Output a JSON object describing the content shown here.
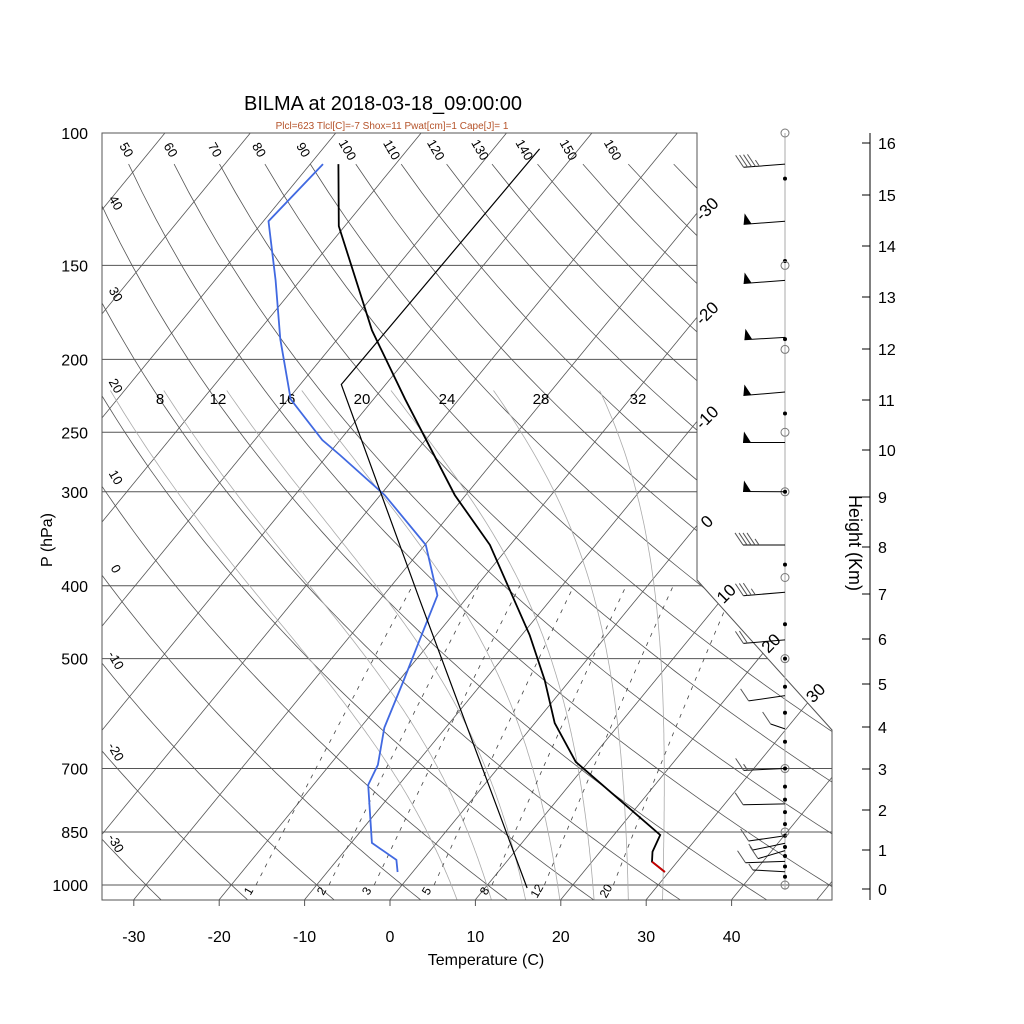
{
  "title": "BILMA at 2018-03-18_09:00:00",
  "subtitle": "Plcl=623 Tlcl[C]=-7 Shox=11 Pwat[cm]=1 Cape[J]= 1",
  "colors": {
    "temperature": "#000000",
    "dewpoint": "#4169e1",
    "surface_segment": "#cc0000",
    "subtitle": "#b5532a",
    "grid": "#555555",
    "moist_adiabat": "#aaaaaa"
  },
  "chart_data": {
    "type": "skew-t",
    "title": "BILMA at 2018-03-18_09:00:00",
    "xlabel": "Temperature (C)",
    "ylabel": "P (hPa)",
    "y2label": "Height (Km)",
    "x_ticks": [
      -30,
      -20,
      -10,
      0,
      10,
      20,
      30,
      40
    ],
    "pressure_ticks": [
      100,
      150,
      200,
      250,
      300,
      400,
      500,
      700,
      850,
      1000
    ],
    "height_ticks": [
      0,
      1,
      2,
      3,
      4,
      5,
      6,
      7,
      8,
      9,
      10,
      11,
      12,
      13,
      14,
      15,
      16
    ],
    "isotherm_labels": [
      -30,
      -20,
      -10,
      0,
      10,
      20,
      30
    ],
    "dry_adiabat_labels_top": [
      50,
      60,
      70,
      80,
      90,
      100,
      110,
      120,
      130,
      140,
      150,
      160
    ],
    "dry_adiabat_labels_left": [
      40,
      30,
      20,
      10,
      0,
      -10,
      -20,
      -30
    ],
    "moist_adiabat_labels": [
      8,
      12,
      16,
      20,
      24,
      28,
      32
    ],
    "mixing_ratio_labels": [
      1,
      2,
      3,
      5,
      8,
      12,
      20
    ],
    "series": [
      {
        "name": "temperature",
        "p": [
          961,
          931,
          903,
          858,
          686,
          609,
          534,
          465,
          353,
          303,
          226,
          183,
          133,
          110
        ],
        "t": [
          29.5,
          27.0,
          26.1,
          25.4,
          8.5,
          2.3,
          -3.0,
          -9.1,
          -22.4,
          -31.3,
          -46.3,
          -56.8,
          -70.7,
          -76.7
        ]
      },
      {
        "name": "dewpoint",
        "p": [
          961,
          926,
          879,
          795,
          736,
          692,
          618,
          534,
          472,
          412,
          353,
          303,
          268,
          256,
          226,
          188,
          157,
          131,
          110
        ],
        "t": [
          -1.8,
          -3.1,
          -7.6,
          -11.0,
          -13.6,
          -14.4,
          -17.2,
          -19.5,
          -21.5,
          -23.7,
          -29.9,
          -39.5,
          -48.6,
          -52.1,
          -59.7,
          -66.7,
          -72.9,
          -79.4,
          -78.5
        ]
      },
      {
        "name": "parcel",
        "p": [
          1009,
          418,
          216,
          105
        ],
        "t": [
          14.9,
          -25.3,
          -55.2,
          -54.6
        ]
      },
      {
        "name": "surface",
        "p": [
          931,
          961
        ],
        "t": [
          27.0,
          29.5
        ]
      }
    ],
    "wind_barbs": [
      {
        "p": 110,
        "speed_kt": 45,
        "dir": 260
      },
      {
        "p": 131,
        "speed_kt": 50,
        "dir": 260
      },
      {
        "p": 157,
        "speed_kt": 50,
        "dir": 260
      },
      {
        "p": 187,
        "speed_kt": 50,
        "dir": 255
      },
      {
        "p": 221,
        "speed_kt": 50,
        "dir": 262
      },
      {
        "p": 258,
        "speed_kt": 50,
        "dir": 270
      },
      {
        "p": 300,
        "speed_kt": 50,
        "dir": 268
      },
      {
        "p": 353,
        "speed_kt": 45,
        "dir": 270
      },
      {
        "p": 408,
        "speed_kt": 35,
        "dir": 262
      },
      {
        "p": 472,
        "speed_kt": 20,
        "dir": 262
      },
      {
        "p": 560,
        "speed_kt": 10,
        "dir": 300
      },
      {
        "p": 620,
        "speed_kt": 10,
        "dir": 200
      },
      {
        "p": 700,
        "speed_kt": 15,
        "dir": 280
      },
      {
        "p": 780,
        "speed_kt": 10,
        "dir": 275
      },
      {
        "p": 860,
        "speed_kt": 10,
        "dir": 300
      },
      {
        "p": 880,
        "speed_kt": 5,
        "dir": 310
      },
      {
        "p": 900,
        "speed_kt": 10,
        "dir": 320
      },
      {
        "p": 930,
        "speed_kt": 10,
        "dir": 250
      },
      {
        "p": 960,
        "speed_kt": 5,
        "dir": 230
      }
    ],
    "level_dots_p": [
      115,
      148,
      188,
      236,
      300,
      375,
      450,
      500,
      545,
      590,
      645,
      700,
      740,
      770,
      800,
      830,
      860,
      890,
      915,
      945,
      975
    ],
    "level_circles_p": [
      100,
      150,
      194,
      250,
      300,
      390,
      500,
      700,
      850,
      1000
    ]
  }
}
